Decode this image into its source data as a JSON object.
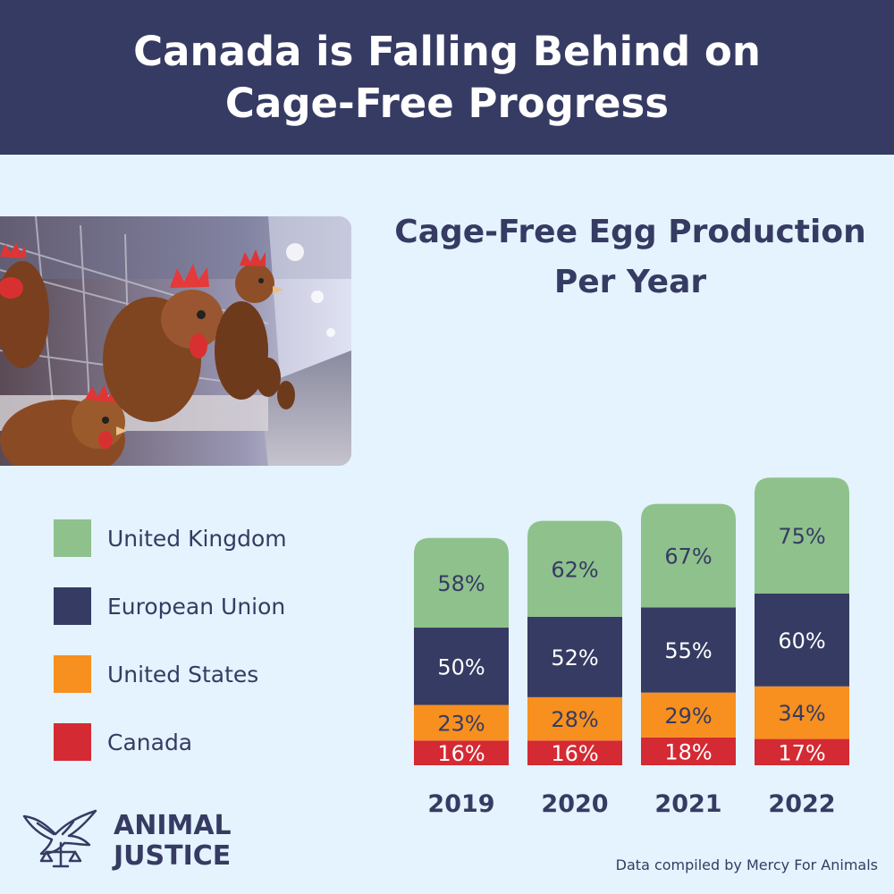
{
  "header": {
    "title": "Canada is Falling Behind on Cage-Free Progress"
  },
  "chart_data": {
    "type": "bar",
    "title": "Cage-Free Egg Production Per Year",
    "categories": [
      "2019",
      "2020",
      "2021",
      "2022"
    ],
    "series": [
      {
        "name": "Canada",
        "color": "#d42a33",
        "values": [
          16,
          16,
          18,
          17
        ],
        "labels": [
          "16%",
          "16%",
          "18%",
          "17%"
        ],
        "label_color": "#ffffff"
      },
      {
        "name": "United States",
        "color": "#f7901e",
        "values": [
          23,
          28,
          29,
          34
        ],
        "labels": [
          "23%",
          "28%",
          "29%",
          "34%"
        ],
        "label_color": "#363b63"
      },
      {
        "name": "European Union",
        "color": "#363b63",
        "values": [
          50,
          52,
          55,
          60
        ],
        "labels": [
          "50%",
          "52%",
          "55%",
          "60%"
        ],
        "label_color": "#ffffff"
      },
      {
        "name": "United Kingdom",
        "color": "#8fc18c",
        "values": [
          58,
          62,
          67,
          75
        ],
        "labels": [
          "58%",
          "62%",
          "67%",
          "75%"
        ],
        "label_color": "#363b63"
      }
    ]
  },
  "legend": [
    {
      "label": "United Kingdom",
      "color": "#8fc18c"
    },
    {
      "label": "European Union",
      "color": "#363b63"
    },
    {
      "label": "United States",
      "color": "#f7901e"
    },
    {
      "label": "Canada",
      "color": "#d42a33"
    }
  ],
  "logo": {
    "line1": "ANIMAL",
    "line2": "JUSTICE",
    "icon": "dove-scales-icon"
  },
  "footnote": "Data compiled by Mercy For Animals",
  "photo": {
    "icon": "hens-in-cages-photo"
  }
}
